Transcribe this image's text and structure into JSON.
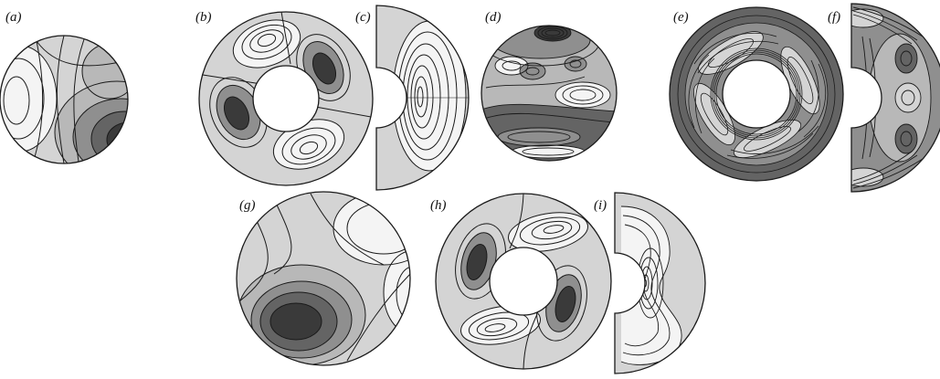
{
  "figure": {
    "panels": [
      {
        "id": "a",
        "label": "(a)",
        "view": "sphere"
      },
      {
        "id": "b",
        "label": "(b)",
        "view": "equatorial-annulus"
      },
      {
        "id": "c",
        "label": "(c)",
        "view": "meridional-half-annulus"
      },
      {
        "id": "d",
        "label": "(d)",
        "view": "sphere"
      },
      {
        "id": "e",
        "label": "(e)",
        "view": "equatorial-annulus"
      },
      {
        "id": "f",
        "label": "(f)",
        "view": "meridional-half-annulus"
      },
      {
        "id": "g",
        "label": "(g)",
        "view": "sphere"
      },
      {
        "id": "h",
        "label": "(h)",
        "view": "equatorial-annulus"
      },
      {
        "id": "i",
        "label": "(i)",
        "view": "meridional-half-annulus"
      }
    ],
    "colors": {
      "outline": "#1a1a1a",
      "contour": "#1a1a1a",
      "shade_light": "#f4f4f4",
      "shade_mid_light": "#d4d4d4",
      "shade_mid": "#b8b8b8",
      "shade_mid_dark": "#8f8f8f",
      "shade_dark": "#646464",
      "shade_darkest": "#3a3a3a",
      "background": "#ffffff"
    }
  }
}
